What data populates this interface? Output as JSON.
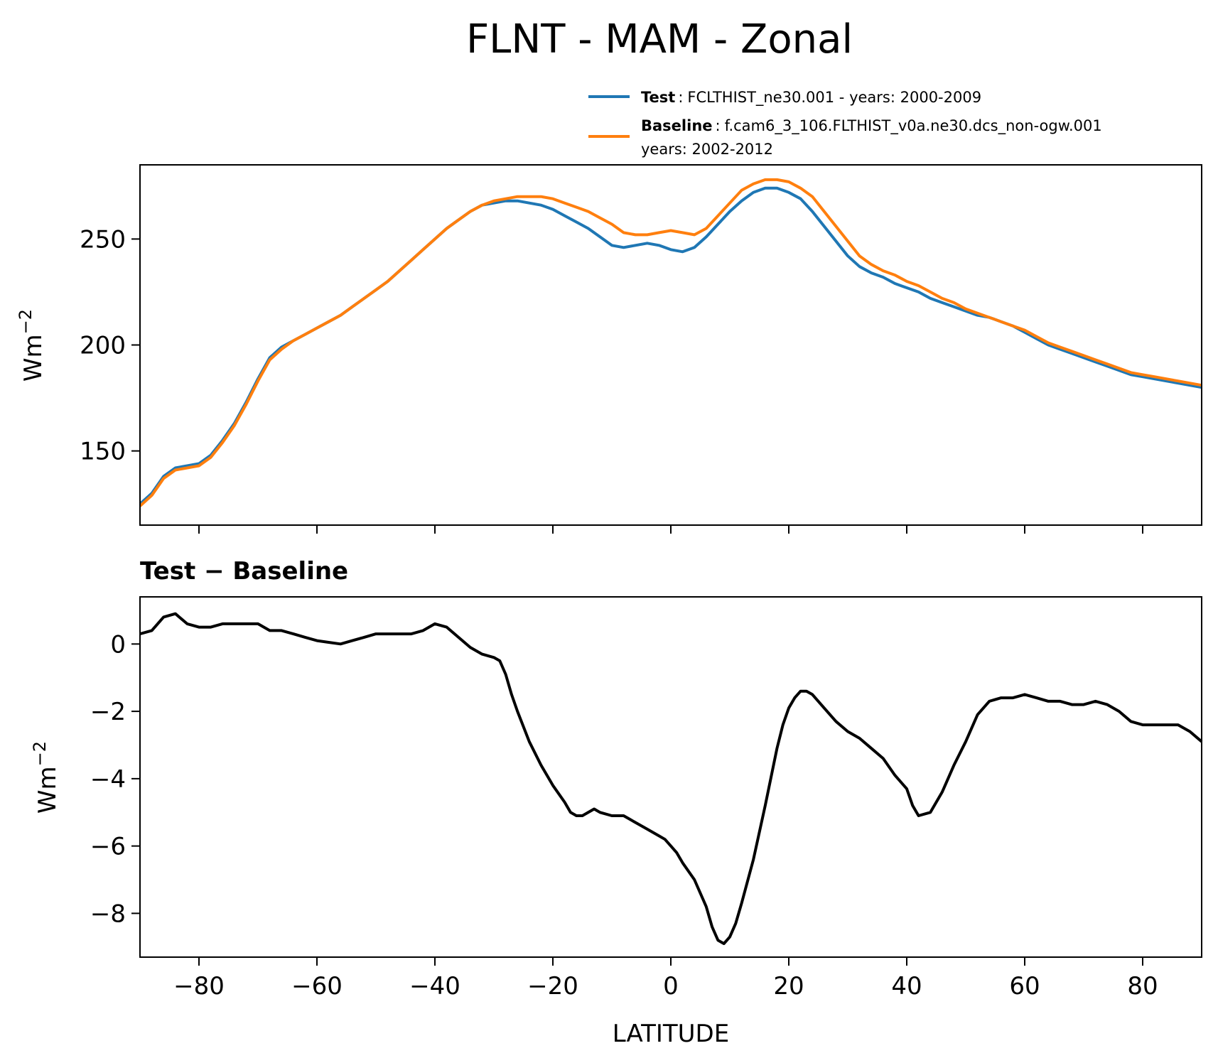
{
  "figure": {
    "title": "FLNT - MAM - Zonal"
  },
  "legend": {
    "test_label": "Test",
    "test_text": "FCLTHIST_ne30.001 - years: 2000-2009",
    "base_label": "Baseline",
    "base_text": "f.cam6_3_106.FLTHIST_v0a.ne30.dcs_non-ogw.001",
    "base_text2": "years: 2002-2012",
    "sep": ":"
  },
  "colors": {
    "test": "#1f77b4",
    "baseline": "#ff7f0e",
    "diff": "#000000"
  },
  "chart_data": [
    {
      "type": "line",
      "title": "",
      "xlabel": "",
      "ylabel": "Wm",
      "ylabel_sup": "−2",
      "xlim": [
        -90,
        90
      ],
      "ylim": [
        115,
        285
      ],
      "yticks": [
        150,
        200,
        250
      ],
      "ytick_labels": [
        "150",
        "200",
        "250"
      ],
      "xticks": [
        -80,
        -60,
        -40,
        -20,
        0,
        20,
        40,
        60,
        80
      ],
      "series": [
        {
          "name": "Test",
          "x": [
            -90,
            -88,
            -86,
            -84,
            -82,
            -80,
            -78,
            -76,
            -74,
            -72,
            -70,
            -68,
            -66,
            -64,
            -62,
            -60,
            -58,
            -56,
            -54,
            -52,
            -50,
            -48,
            -46,
            -44,
            -42,
            -40,
            -38,
            -36,
            -34,
            -32,
            -30,
            -28,
            -26,
            -24,
            -22,
            -20,
            -18,
            -16,
            -14,
            -12,
            -10,
            -8,
            -6,
            -4,
            -2,
            0,
            2,
            4,
            6,
            8,
            10,
            12,
            14,
            16,
            18,
            20,
            22,
            24,
            26,
            28,
            30,
            32,
            34,
            36,
            38,
            40,
            42,
            44,
            46,
            48,
            50,
            52,
            54,
            56,
            58,
            60,
            62,
            64,
            66,
            68,
            70,
            72,
            74,
            76,
            78,
            80,
            82,
            84,
            86,
            88,
            90
          ],
          "values": [
            125,
            130,
            138,
            142,
            143,
            144,
            148,
            155,
            163,
            173,
            184,
            194,
            199,
            202,
            205,
            208,
            211,
            214,
            218,
            222,
            226,
            230,
            235,
            240,
            245,
            250,
            255,
            259,
            263,
            266,
            267,
            268,
            268,
            267,
            266,
            264,
            261,
            258,
            255,
            251,
            247,
            246,
            247,
            248,
            247,
            245,
            244,
            246,
            251,
            257,
            263,
            268,
            272,
            274,
            274,
            272,
            269,
            263,
            256,
            249,
            242,
            237,
            234,
            232,
            229,
            227,
            225,
            222,
            220,
            218,
            216,
            214,
            213,
            211,
            209,
            206,
            203,
            200,
            198,
            196,
            194,
            192,
            190,
            188,
            186,
            185,
            184,
            183,
            182,
            181,
            180
          ]
        },
        {
          "name": "Baseline",
          "x": [
            -90,
            -88,
            -86,
            -84,
            -82,
            -80,
            -78,
            -76,
            -74,
            -72,
            -70,
            -68,
            -66,
            -64,
            -62,
            -60,
            -58,
            -56,
            -54,
            -52,
            -50,
            -48,
            -46,
            -44,
            -42,
            -40,
            -38,
            -36,
            -34,
            -32,
            -30,
            -28,
            -26,
            -24,
            -22,
            -20,
            -18,
            -16,
            -14,
            -12,
            -10,
            -8,
            -6,
            -4,
            -2,
            0,
            2,
            4,
            6,
            8,
            10,
            12,
            14,
            16,
            18,
            20,
            22,
            24,
            26,
            28,
            30,
            32,
            34,
            36,
            38,
            40,
            42,
            44,
            46,
            48,
            50,
            52,
            54,
            56,
            58,
            60,
            62,
            64,
            66,
            68,
            70,
            72,
            74,
            76,
            78,
            80,
            82,
            84,
            86,
            88,
            90
          ],
          "values": [
            124,
            129,
            137,
            141,
            142,
            143,
            147,
            154,
            162,
            172,
            183,
            193,
            198,
            202,
            205,
            208,
            211,
            214,
            218,
            222,
            226,
            230,
            235,
            240,
            245,
            250,
            255,
            259,
            263,
            266,
            268,
            269,
            270,
            270,
            270,
            269,
            267,
            265,
            263,
            260,
            257,
            253,
            252,
            252,
            253,
            254,
            253,
            252,
            255,
            261,
            267,
            273,
            276,
            278,
            278,
            277,
            274,
            270,
            263,
            256,
            249,
            242,
            238,
            235,
            233,
            230,
            228,
            225,
            222,
            220,
            217,
            215,
            213,
            211,
            209,
            207,
            204,
            201,
            199,
            197,
            195,
            193,
            191,
            189,
            187,
            186,
            185,
            184,
            183,
            182,
            181
          ]
        }
      ]
    },
    {
      "type": "line",
      "title": "Test − Baseline",
      "xlabel": "LATITUDE",
      "ylabel": "Wm",
      "ylabel_sup": "−2",
      "xlim": [
        -90,
        90
      ],
      "ylim": [
        -9.3,
        1.4
      ],
      "yticks": [
        0,
        -2,
        -4,
        -6,
        -8
      ],
      "ytick_labels": [
        "0",
        "−2",
        "−4",
        "−6",
        "−8"
      ],
      "xticks": [
        -80,
        -60,
        -40,
        -20,
        0,
        20,
        40,
        60,
        80
      ],
      "xtick_labels": [
        "−80",
        "−60",
        "−40",
        "−20",
        "0",
        "20",
        "40",
        "60",
        "80"
      ],
      "series": [
        {
          "x": [
            -90,
            -88,
            -86,
            -84,
            -82,
            -80,
            -78,
            -76,
            -74,
            -72,
            -70,
            -68,
            -66,
            -64,
            -62,
            -60,
            -58,
            -56,
            -54,
            -52,
            -50,
            -48,
            -46,
            -44,
            -42,
            -40,
            -38,
            -36,
            -34,
            -32,
            -30,
            -29,
            -28,
            -27,
            -26,
            -24,
            -22,
            -20,
            -18,
            -17,
            -16,
            -15,
            -14,
            -13,
            -12,
            -10,
            -8,
            -6,
            -4,
            -2,
            -1,
            0,
            1,
            2,
            4,
            6,
            7,
            8,
            9,
            10,
            11,
            12,
            14,
            16,
            18,
            19,
            20,
            21,
            22,
            23,
            24,
            26,
            28,
            30,
            32,
            34,
            36,
            38,
            40,
            41,
            42,
            44,
            46,
            48,
            50,
            52,
            54,
            56,
            58,
            60,
            62,
            64,
            66,
            68,
            70,
            72,
            74,
            76,
            78,
            80,
            82,
            84,
            86,
            88,
            90
          ],
          "values": [
            0.3,
            0.4,
            0.8,
            0.9,
            0.6,
            0.5,
            0.5,
            0.6,
            0.6,
            0.6,
            0.6,
            0.4,
            0.4,
            0.3,
            0.2,
            0.1,
            0.05,
            0.0,
            0.1,
            0.2,
            0.3,
            0.3,
            0.3,
            0.3,
            0.4,
            0.6,
            0.5,
            0.2,
            -0.1,
            -0.3,
            -0.4,
            -0.5,
            -0.9,
            -1.5,
            -2.0,
            -2.9,
            -3.6,
            -4.2,
            -4.7,
            -5.0,
            -5.1,
            -5.1,
            -5.0,
            -4.9,
            -5.0,
            -5.1,
            -5.1,
            -5.3,
            -5.5,
            -5.7,
            -5.8,
            -6.0,
            -6.2,
            -6.5,
            -7.0,
            -7.8,
            -8.4,
            -8.8,
            -8.9,
            -8.7,
            -8.3,
            -7.7,
            -6.4,
            -4.8,
            -3.1,
            -2.4,
            -1.9,
            -1.6,
            -1.4,
            -1.4,
            -1.5,
            -1.9,
            -2.3,
            -2.6,
            -2.8,
            -3.1,
            -3.4,
            -3.9,
            -4.3,
            -4.8,
            -5.1,
            -5.0,
            -4.4,
            -3.6,
            -2.9,
            -2.1,
            -1.7,
            -1.6,
            -1.6,
            -1.5,
            -1.6,
            -1.7,
            -1.7,
            -1.8,
            -1.8,
            -1.7,
            -1.8,
            -2.0,
            -2.3,
            -2.4,
            -2.4,
            -2.4,
            -2.4,
            -2.6,
            -2.9
          ]
        }
      ]
    }
  ]
}
